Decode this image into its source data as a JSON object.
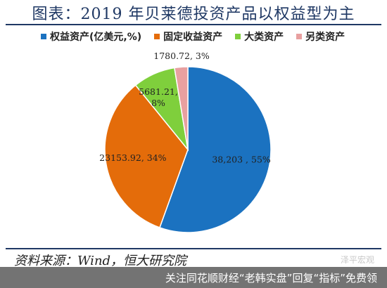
{
  "title": "图表：2019 年贝莱德投资产品以权益型为主",
  "source": "资料来源：Wind，恒大研究院",
  "watermark": "泽平宏观",
  "footer": "关注同花顺财经“老韩实盘”回复“指标”免费领",
  "colors": {
    "title": "#1f3864",
    "equity": "#1b72c0",
    "fixed_income": "#e46c0a",
    "commodity": "#7fcf3c",
    "alternative": "#e8a0a0"
  },
  "chart_data": {
    "type": "pie",
    "legend_position": "top",
    "categories": [
      "权益资产(亿美元,%)",
      "固定收益资产",
      "大类资产",
      "另类资产"
    ],
    "values": [
      38203,
      23153.92,
      5681.21,
      1780.72
    ],
    "percents": [
      55,
      34,
      8,
      3
    ],
    "data_labels": [
      "38,203 , 55%",
      "23153.92, 34%",
      "5681.21, 8%",
      "1780.72, 3%"
    ]
  }
}
